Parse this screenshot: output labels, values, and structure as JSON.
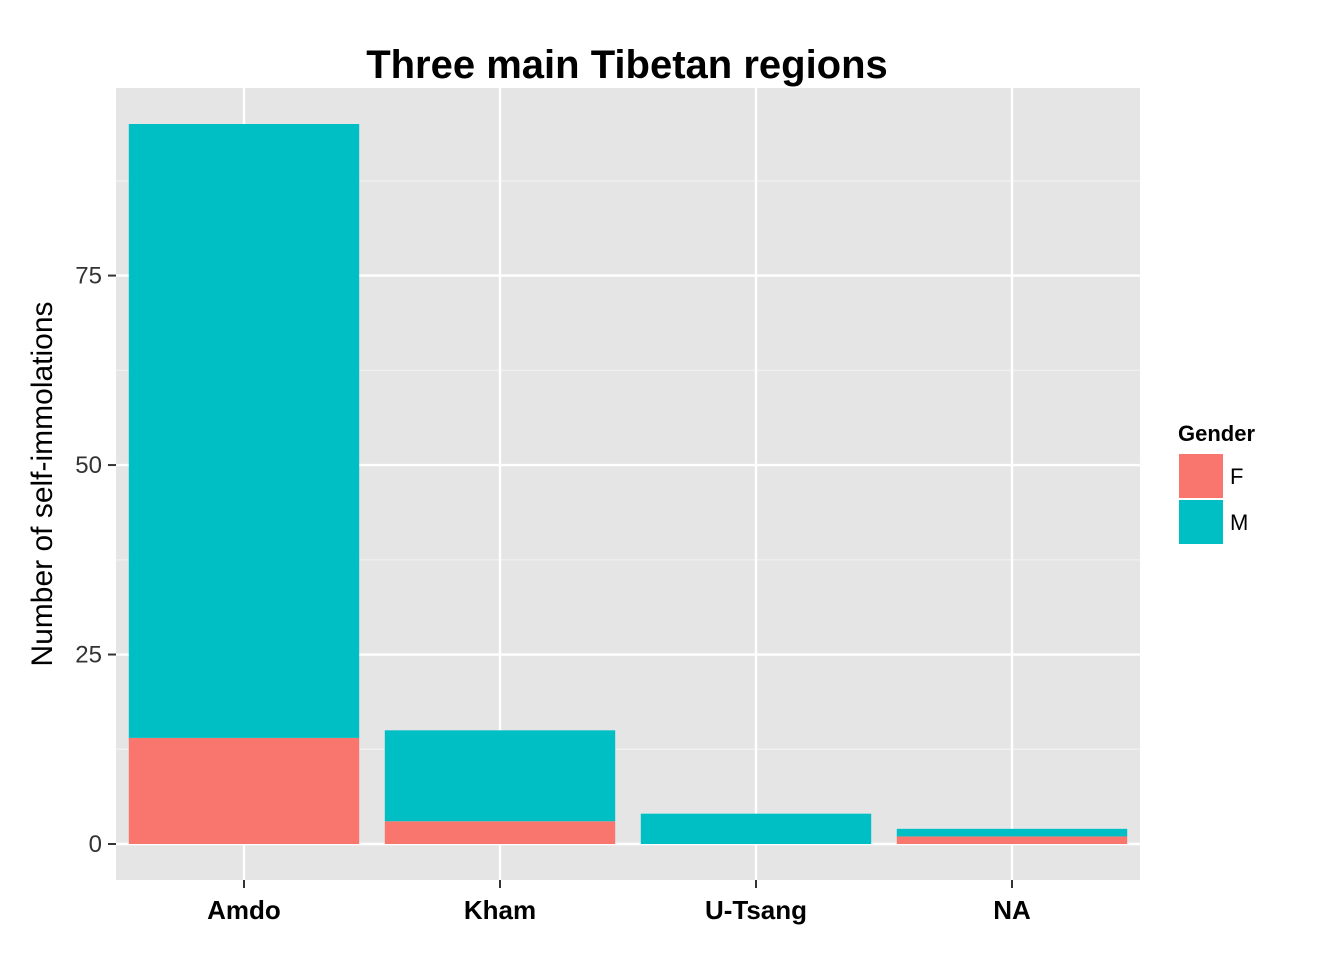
{
  "chart_data": {
    "type": "bar",
    "stacked": true,
    "title": "Three main Tibetan regions",
    "xlabel": "",
    "ylabel": "Number of self-immolations",
    "categories": [
      "Amdo",
      "Kham",
      "U-Tsang",
      "NA"
    ],
    "series": [
      {
        "name": "F",
        "values": [
          14,
          3,
          0,
          1
        ],
        "color": "#F8766D"
      },
      {
        "name": "M",
        "values": [
          81,
          12,
          4,
          1
        ],
        "color": "#00BFC4"
      }
    ],
    "yticks": [
      0,
      25,
      50,
      75
    ],
    "ylim": [
      -4.75,
      99.75
    ],
    "grid": true,
    "legend": {
      "title": "Gender",
      "position": "right"
    },
    "panel_background": "#E5E5E5",
    "grid_color": "#FFFFFF"
  }
}
